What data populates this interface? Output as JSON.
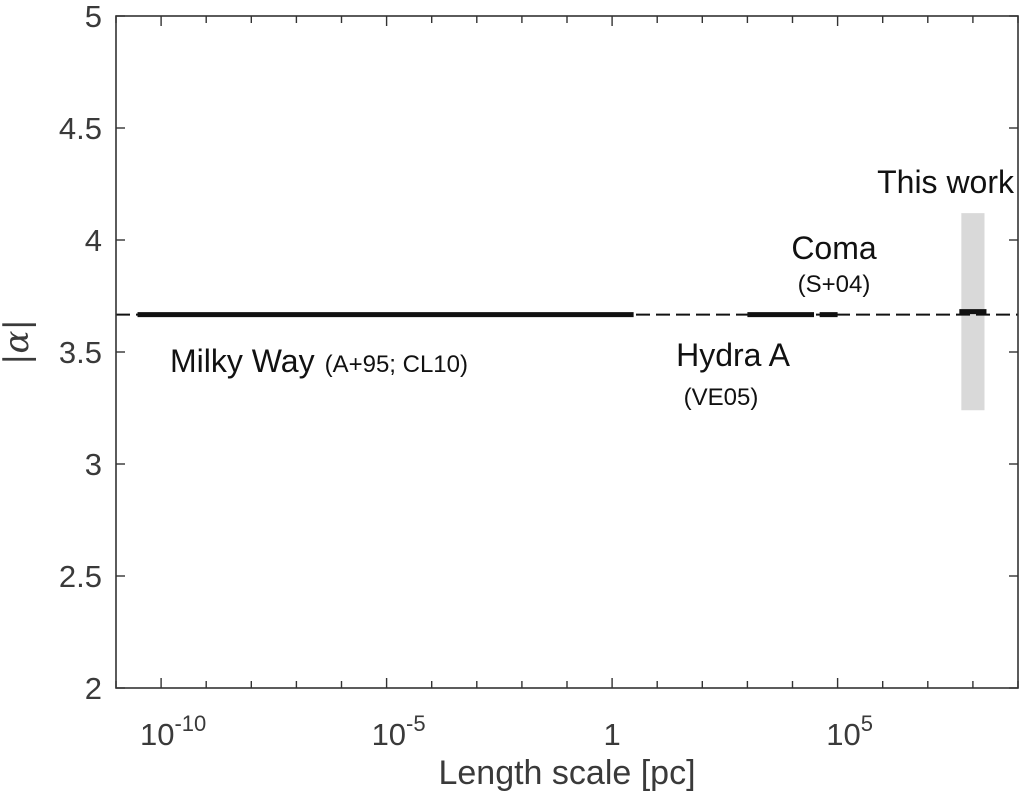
{
  "chart_data": {
    "type": "scatter",
    "xlabel": "Length scale [pc]",
    "ylabel": "|α|",
    "x_scale": "log",
    "xlim": [
      1e-11,
      1000000000.0
    ],
    "ylim": [
      2,
      5
    ],
    "x_ticks": [
      {
        "value": 1e-10,
        "base": "10",
        "exp": "-10"
      },
      {
        "value": 1e-05,
        "base": "10",
        "exp": "-5"
      },
      {
        "value": 1,
        "base": "1",
        "exp": ""
      },
      {
        "value": 100000.0,
        "base": "10",
        "exp": "5"
      }
    ],
    "y_ticks": [
      "2",
      "2.5",
      "3",
      "3.5",
      "4",
      "4.5",
      "5"
    ],
    "grid": false,
    "reference_line": {
      "y": 3.667,
      "style": "dashed"
    },
    "segments": [
      {
        "name": "Milky Way",
        "ref": "(A+95; CL10)",
        "x_range": [
          3e-11,
          3
        ],
        "y": 3.667
      },
      {
        "name": "Hydra A",
        "ref": "(VE05)",
        "x_range": [
          1000,
          30000.0
        ],
        "y": 3.667
      },
      {
        "name": "Coma",
        "ref": "(S+04)",
        "x_range": [
          40000.0,
          100000.0
        ],
        "y": 3.667
      },
      {
        "name": "This work",
        "ref": "",
        "x_range": [
          50000000.0,
          200000000.0
        ],
        "y": 3.68,
        "band": [
          3.24,
          4.12
        ]
      }
    ]
  }
}
